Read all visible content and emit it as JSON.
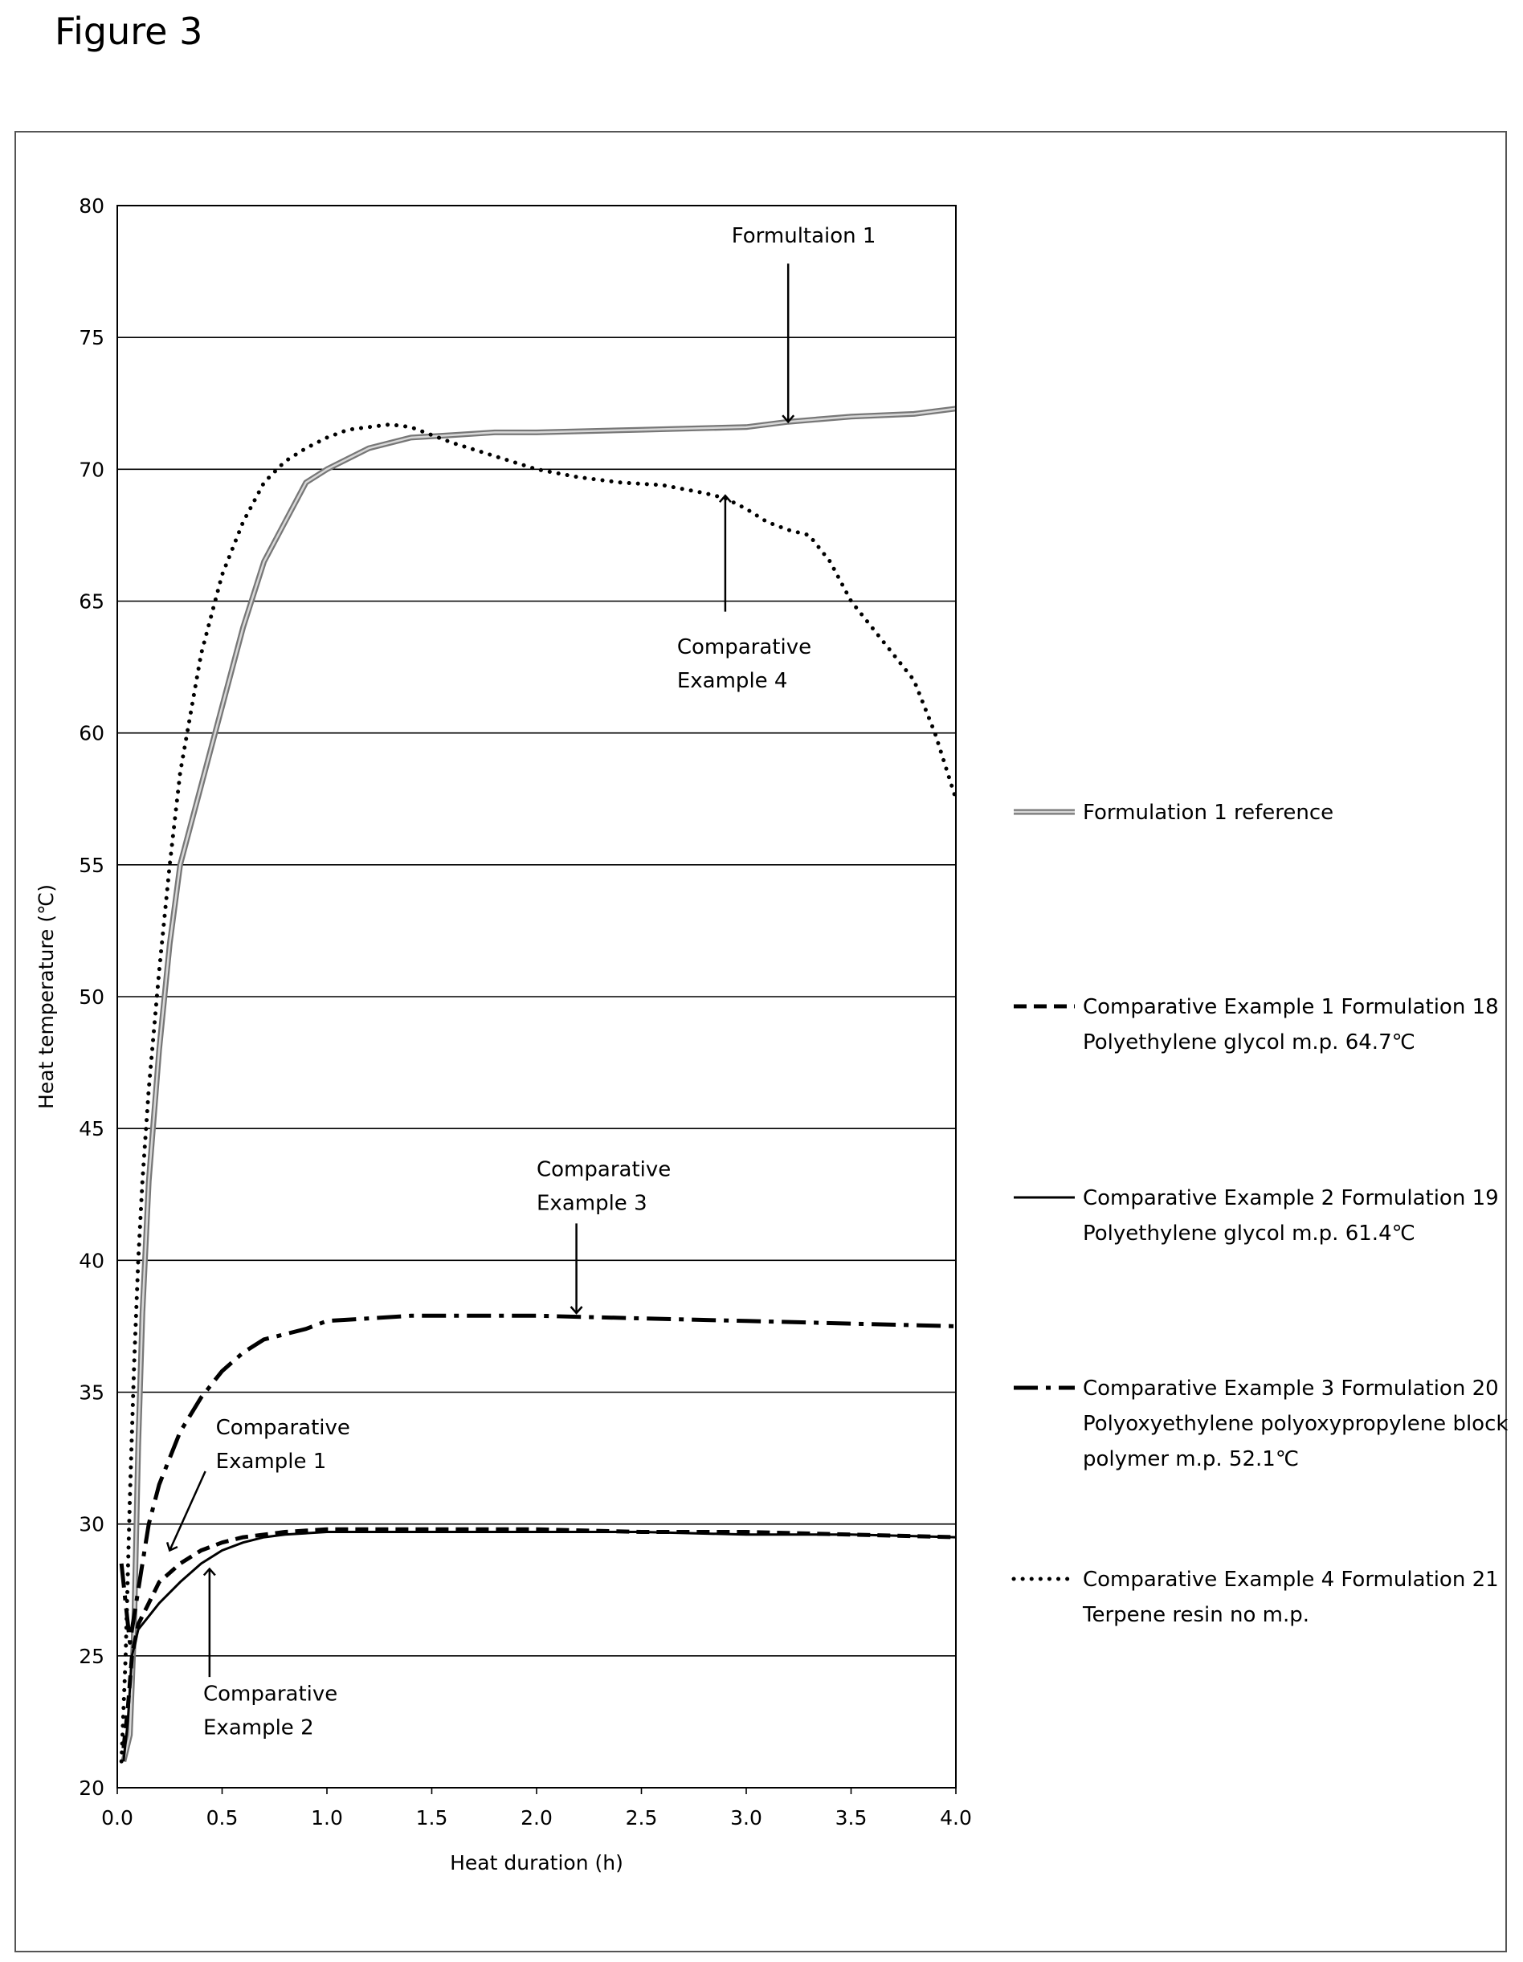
{
  "figure_label": "Figure 3",
  "chart_data": {
    "type": "line",
    "title": "",
    "xlabel": "Heat duration (h)",
    "ylabel": "Heat temperature (℃)",
    "xlim": [
      0,
      4
    ],
    "ylim": [
      20,
      80
    ],
    "x_ticks": [
      "0.0",
      "0.5",
      "1.0",
      "1.5",
      "2.0",
      "2.5",
      "3.0",
      "3.5",
      "4.0"
    ],
    "y_ticks": [
      "20",
      "25",
      "30",
      "35",
      "40",
      "45",
      "50",
      "55",
      "60",
      "65",
      "70",
      "75",
      "80"
    ],
    "grid": "horizontal",
    "legend_position": "right",
    "series": [
      {
        "key": "f1",
        "name": "Formulation 1 reference",
        "legend_lines": [
          "Formulation 1 reference"
        ],
        "color": "#9a9a9a",
        "style": "double-solid",
        "points": [
          [
            0.03,
            21
          ],
          [
            0.06,
            22
          ],
          [
            0.08,
            26
          ],
          [
            0.1,
            33
          ],
          [
            0.12,
            38
          ],
          [
            0.15,
            43
          ],
          [
            0.2,
            48
          ],
          [
            0.25,
            52
          ],
          [
            0.3,
            55
          ],
          [
            0.4,
            58
          ],
          [
            0.5,
            61
          ],
          [
            0.6,
            64
          ],
          [
            0.7,
            66.5
          ],
          [
            0.8,
            68
          ],
          [
            0.9,
            69.5
          ],
          [
            1.0,
            70
          ],
          [
            1.2,
            70.8
          ],
          [
            1.4,
            71.2
          ],
          [
            1.6,
            71.3
          ],
          [
            1.8,
            71.4
          ],
          [
            2.0,
            71.4
          ],
          [
            2.5,
            71.5
          ],
          [
            3.0,
            71.6
          ],
          [
            3.2,
            71.8
          ],
          [
            3.5,
            72
          ],
          [
            3.8,
            72.1
          ],
          [
            4.0,
            72.3
          ]
        ]
      },
      {
        "key": "ce1",
        "name": "Comparative Example 1 Formulation 18 Polyethylene glycol m.p. 64.7℃",
        "legend_lines": [
          "Comparative Example 1 Formulation 18",
          "Polyethylene glycol m.p. 64.7℃"
        ],
        "color": "#000000",
        "style": "dashed",
        "points": [
          [
            0.03,
            21.5
          ],
          [
            0.05,
            23
          ],
          [
            0.07,
            25
          ],
          [
            0.1,
            26.2
          ],
          [
            0.15,
            27
          ],
          [
            0.2,
            27.8
          ],
          [
            0.3,
            28.5
          ],
          [
            0.4,
            29
          ],
          [
            0.5,
            29.3
          ],
          [
            0.6,
            29.5
          ],
          [
            0.7,
            29.6
          ],
          [
            0.8,
            29.7
          ],
          [
            1.0,
            29.8
          ],
          [
            1.5,
            29.8
          ],
          [
            2.0,
            29.8
          ],
          [
            2.5,
            29.7
          ],
          [
            3.0,
            29.7
          ],
          [
            3.5,
            29.6
          ],
          [
            4.0,
            29.5
          ]
        ]
      },
      {
        "key": "ce2",
        "name": "Comparative Example 2 Formulation 19 Polyethylene glycol m.p. 61.4℃",
        "legend_lines": [
          "Comparative Example 2 Formulation 19",
          "Polyethylene glycol m.p.  61.4℃"
        ],
        "color": "#000000",
        "style": "solid",
        "points": [
          [
            0.03,
            21
          ],
          [
            0.05,
            22.5
          ],
          [
            0.07,
            25
          ],
          [
            0.1,
            26
          ],
          [
            0.15,
            26.5
          ],
          [
            0.2,
            27
          ],
          [
            0.3,
            27.8
          ],
          [
            0.4,
            28.5
          ],
          [
            0.5,
            29
          ],
          [
            0.6,
            29.3
          ],
          [
            0.7,
            29.5
          ],
          [
            0.8,
            29.6
          ],
          [
            1.0,
            29.7
          ],
          [
            1.5,
            29.7
          ],
          [
            2.0,
            29.7
          ],
          [
            2.5,
            29.7
          ],
          [
            3.0,
            29.6
          ],
          [
            3.5,
            29.6
          ],
          [
            4.0,
            29.5
          ]
        ]
      },
      {
        "key": "ce3",
        "name": "Comparative Example 3 Formulation 20 Polyoxyethylene polyoxypropylene block polymer m.p. 52.1℃",
        "legend_lines": [
          "Comparative Example 3 Formulation 20",
          "Polyoxyethylene polyoxypropylene block",
          "polymer m.p.  52.1℃"
        ],
        "color": "#000000",
        "style": "dash-dot",
        "points": [
          [
            0.02,
            28.5
          ],
          [
            0.04,
            27
          ],
          [
            0.06,
            25.5
          ],
          [
            0.08,
            26.5
          ],
          [
            0.1,
            27.5
          ],
          [
            0.12,
            28.5
          ],
          [
            0.15,
            30
          ],
          [
            0.2,
            31.5
          ],
          [
            0.3,
            33.5
          ],
          [
            0.4,
            34.8
          ],
          [
            0.5,
            35.8
          ],
          [
            0.6,
            36.5
          ],
          [
            0.7,
            37
          ],
          [
            0.8,
            37.2
          ],
          [
            0.9,
            37.4
          ],
          [
            1.0,
            37.7
          ],
          [
            1.2,
            37.8
          ],
          [
            1.4,
            37.9
          ],
          [
            1.6,
            37.9
          ],
          [
            2.0,
            37.9
          ],
          [
            2.5,
            37.8
          ],
          [
            3.0,
            37.7
          ],
          [
            3.5,
            37.6
          ],
          [
            4.0,
            37.5
          ]
        ]
      },
      {
        "key": "ce4",
        "name": "Comparative Example 4 Formulation 21 Terpene resin no m.p.",
        "legend_lines": [
          "Comparative Example 4 Formulation 21",
          "Terpene resin no m.p."
        ],
        "color": "#000000",
        "style": "dotted",
        "points": [
          [
            0.02,
            21
          ],
          [
            0.04,
            25
          ],
          [
            0.06,
            31
          ],
          [
            0.08,
            36
          ],
          [
            0.1,
            40
          ],
          [
            0.12,
            43
          ],
          [
            0.15,
            46.5
          ],
          [
            0.2,
            51
          ],
          [
            0.25,
            55
          ],
          [
            0.3,
            58.5
          ],
          [
            0.4,
            63
          ],
          [
            0.5,
            66
          ],
          [
            0.6,
            68
          ],
          [
            0.7,
            69.5
          ],
          [
            0.8,
            70.3
          ],
          [
            0.9,
            70.8
          ],
          [
            1.0,
            71.2
          ],
          [
            1.1,
            71.5
          ],
          [
            1.2,
            71.6
          ],
          [
            1.3,
            71.7
          ],
          [
            1.4,
            71.6
          ],
          [
            1.5,
            71.3
          ],
          [
            1.6,
            71
          ],
          [
            1.8,
            70.5
          ],
          [
            2.0,
            70
          ],
          [
            2.2,
            69.7
          ],
          [
            2.4,
            69.5
          ],
          [
            2.6,
            69.4
          ],
          [
            2.8,
            69.1
          ],
          [
            2.9,
            68.9
          ],
          [
            3.0,
            68.5
          ],
          [
            3.1,
            68
          ],
          [
            3.2,
            67.7
          ],
          [
            3.3,
            67.5
          ],
          [
            3.4,
            66.5
          ],
          [
            3.5,
            65
          ],
          [
            3.6,
            64
          ],
          [
            3.7,
            63
          ],
          [
            3.8,
            62
          ],
          [
            3.9,
            60
          ],
          [
            4.0,
            57.5
          ]
        ]
      }
    ],
    "annotations": [
      {
        "key": "a-f1",
        "lines": [
          "Formultaion 1"
        ],
        "target": [
          3.2,
          71.8
        ],
        "from_y": 77.8,
        "text_x": 2.93,
        "text_y": 78.6,
        "dir": "down"
      },
      {
        "key": "a-ce4",
        "lines": [
          "Comparative",
          "Example 4"
        ],
        "target": [
          2.9,
          69.0
        ],
        "from_y": 64.6,
        "text_x": 2.67,
        "text_y": 63.0,
        "dir": "up"
      },
      {
        "key": "a-ce3",
        "lines": [
          "Comparative",
          "Example 3"
        ],
        "target": [
          2.19,
          38.0
        ],
        "from_y": 41.4,
        "text_x": 2.0,
        "text_y": 43.2,
        "dir": "down"
      },
      {
        "key": "a-ce1",
        "lines": [
          "Comparative",
          "Example 1"
        ],
        "target": [
          0.25,
          29.0
        ],
        "from_y": 32.0,
        "text_x": 0.47,
        "text_y": 33.4,
        "dir": "diag",
        "from_x": 0.42
      },
      {
        "key": "a-ce2",
        "lines": [
          "Comparative",
          "Example 2"
        ],
        "target": [
          0.44,
          28.3
        ],
        "from_y": 24.2,
        "text_x": 0.41,
        "text_y": 23.3,
        "dir": "up"
      }
    ]
  }
}
